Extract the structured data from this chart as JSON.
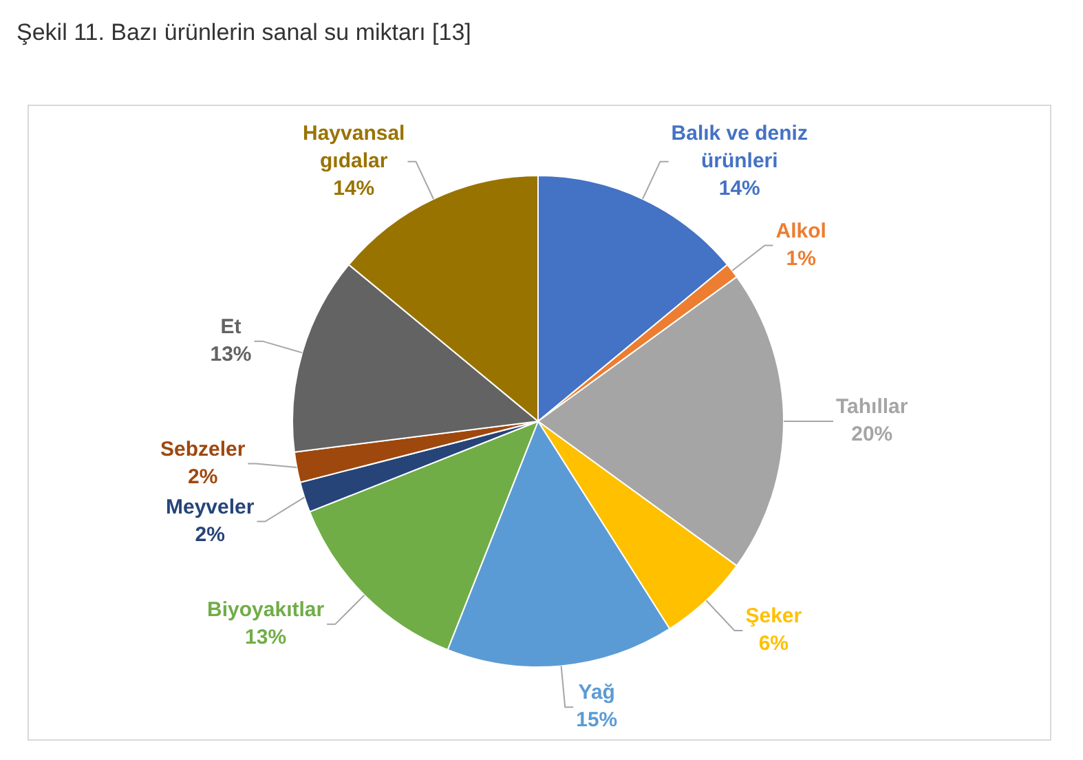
{
  "chart_data": {
    "type": "pie",
    "title": "Şekil 11. Bazı ürünlerin sanal su miktarı [13]",
    "categories": [
      "Balık ve deniz ürünleri",
      "Alkol",
      "Tahıllar",
      "Şeker",
      "Yağ",
      "Biyoyakıtlar",
      "Meyveler",
      "Sebzeler",
      "Et",
      "Hayvansal gıdalar"
    ],
    "values": [
      14,
      1,
      20,
      6,
      15,
      13,
      2,
      2,
      13,
      14
    ],
    "colors": [
      "#4472c4",
      "#ed7d31",
      "#a5a5a5",
      "#ffc000",
      "#5b9bd5",
      "#70ad47",
      "#264478",
      "#9e480e",
      "#636363",
      "#997300"
    ],
    "value_labels": [
      "14%",
      "1%",
      "20%",
      "6%",
      "15%",
      "13%",
      "2%",
      "2%",
      "13%",
      "14%"
    ],
    "legend": false
  }
}
